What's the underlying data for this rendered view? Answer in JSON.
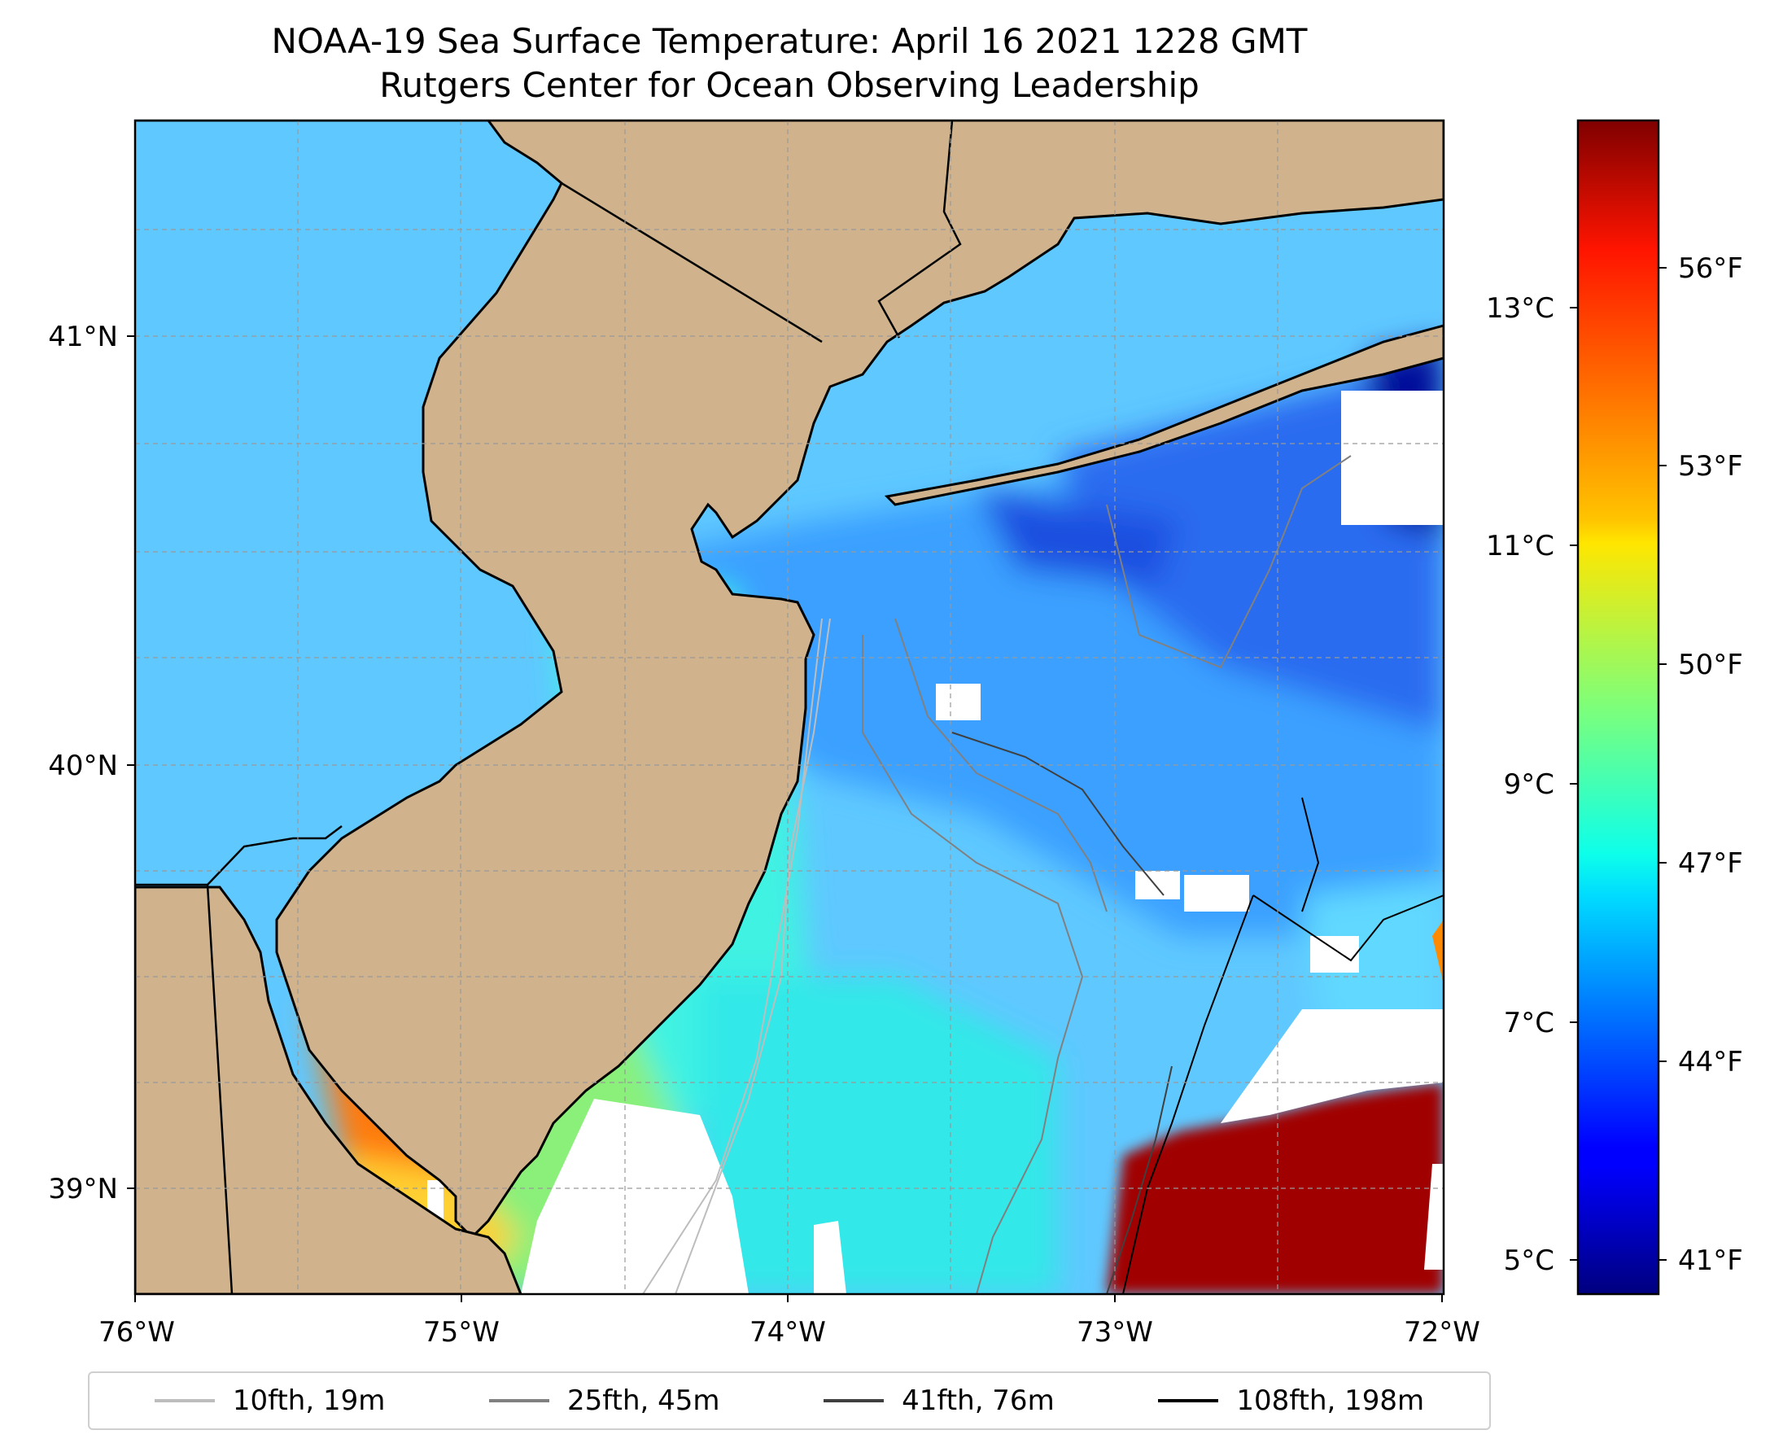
{
  "title": {
    "line1": "NOAA-19 Sea Surface Temperature: April 16 2021 1228 GMT",
    "line2": "Rutgers Center for Ocean Observing Leadership"
  },
  "map": {
    "lon_range": [
      -76,
      -72
    ],
    "lat_range": [
      38.73,
      41.51
    ],
    "gridlines": true,
    "x_ticks": [
      "76°W",
      "75°W",
      "74°W",
      "73°W",
      "72°W"
    ],
    "y_ticks": [
      "39°N",
      "40°N",
      "41°N"
    ],
    "land_color": "#d0b38c",
    "no_data_color": "#ffffff"
  },
  "colorbar": {
    "colormap": "jet",
    "celsius_ticks": [
      "5°C",
      "7°C",
      "9°C",
      "11°C",
      "13°C"
    ],
    "fahrenheit_ticks": [
      "41°F",
      "44°F",
      "47°F",
      "50°F",
      "53°F",
      "56°F"
    ],
    "range_c": [
      4.6,
      14.5
    ]
  },
  "legend": {
    "placement": "bottom",
    "items": [
      {
        "label": "10fth, 19m",
        "color": "#bdbdbd"
      },
      {
        "label": "25fth, 45m",
        "color": "#808080"
      },
      {
        "label": "41fth, 76m",
        "color": "#404040"
      },
      {
        "label": "108fth, 198m",
        "color": "#000000"
      }
    ]
  }
}
